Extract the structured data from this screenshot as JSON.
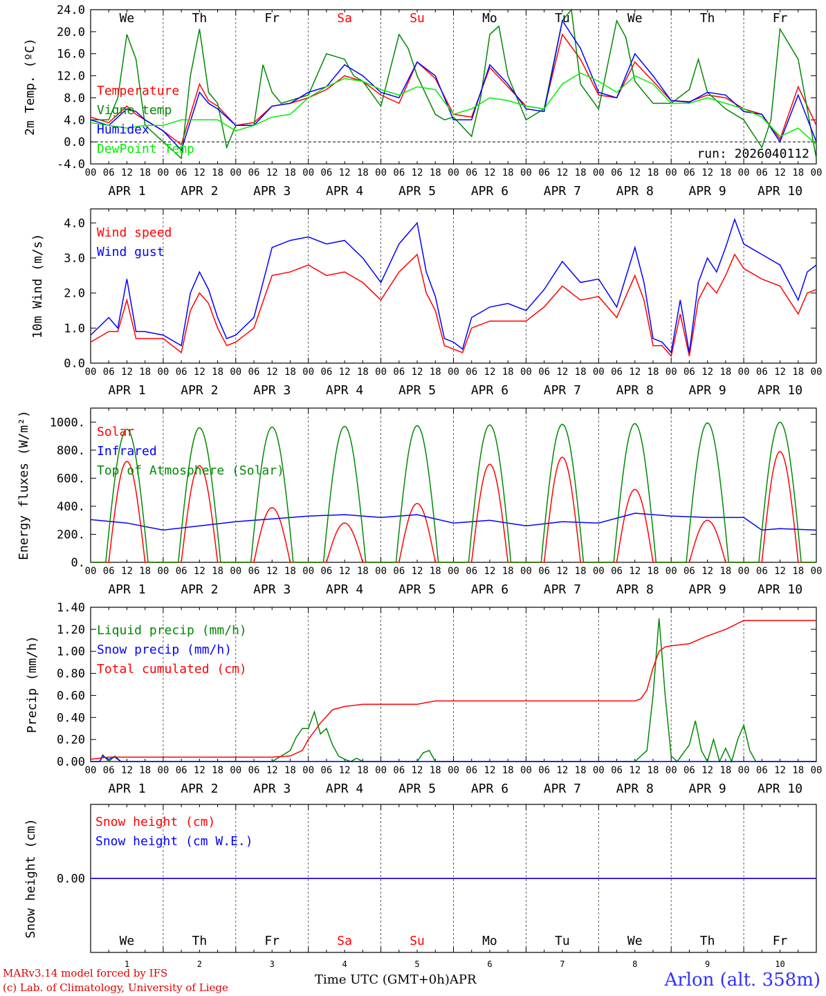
{
  "run_label": "run: 2026040112",
  "footer": {
    "credit_line1": "MARv3.14 model forced by IFS",
    "credit_line2": "(c) Lab. of Climatology, University of Liege",
    "x_axis_title": "Time UTC (GMT+0h)",
    "month_label": "APR",
    "station": "Arlon (alt. 358m)"
  },
  "colors": {
    "red": "#ff0000",
    "blue": "#0000ff",
    "green": "#008800",
    "lightgreen": "#00ee00",
    "weekend": "#ff0000",
    "axis": "#000000"
  },
  "days": [
    {
      "abbr": "We",
      "num": "1",
      "date": "APR  1",
      "weekend": false
    },
    {
      "abbr": "Th",
      "num": "2",
      "date": "APR  2",
      "weekend": false
    },
    {
      "abbr": "Fr",
      "num": "3",
      "date": "APR  3",
      "weekend": false
    },
    {
      "abbr": "Sa",
      "num": "4",
      "date": "APR  4",
      "weekend": true
    },
    {
      "abbr": "Su",
      "num": "5",
      "date": "APR  5",
      "weekend": true
    },
    {
      "abbr": "Mo",
      "num": "6",
      "date": "APR  6",
      "weekend": false
    },
    {
      "abbr": "Tu",
      "num": "7",
      "date": "APR  7",
      "weekend": false
    },
    {
      "abbr": "We",
      "num": "8",
      "date": "APR  8",
      "weekend": false
    },
    {
      "abbr": "Th",
      "num": "9",
      "date": "APR  9",
      "weekend": false
    },
    {
      "abbr": "Fr",
      "num": "10",
      "date": "APR 10",
      "weekend": false
    }
  ],
  "hour_labels": [
    "00",
    "06",
    "12",
    "18"
  ],
  "chart_data": [
    {
      "type": "line",
      "id": "temp",
      "ylabel": "2m Temp. (ºC)",
      "ylim": [
        -4,
        24
      ],
      "yticks": [
        "-4.0",
        "0.0",
        "4.0",
        "8.0",
        "12.0",
        "16.0",
        "20.0",
        "24.0"
      ],
      "ytick_values": [
        -4,
        0,
        4,
        8,
        12,
        16,
        20,
        24
      ],
      "zero_line": true,
      "x_unit": "hours since APR 1 00 UTC",
      "series": [
        {
          "name": "Temperature",
          "color": "#ff0000",
          "x": [
            0,
            6,
            12,
            15,
            18,
            24,
            30,
            36,
            39,
            42,
            48,
            54,
            60,
            66,
            72,
            78,
            84,
            90,
            96,
            102,
            108,
            114,
            120,
            126,
            132,
            138,
            144,
            150,
            156,
            162,
            168,
            174,
            180,
            186,
            192,
            198,
            204,
            210,
            216,
            222,
            228,
            234,
            240
          ],
          "values": [
            4.5,
            3.5,
            6.5,
            5,
            4,
            2,
            -0.5,
            10.5,
            7.5,
            6.5,
            3,
            3.5,
            6.5,
            7,
            8,
            9.5,
            12,
            11,
            8.5,
            7,
            14.5,
            11.5,
            5,
            4.5,
            13.5,
            10,
            6.5,
            6,
            19.5,
            15,
            8.5,
            8,
            14.5,
            11,
            7.5,
            7.3,
            8.5,
            8,
            6,
            5,
            0.5,
            10,
            3
          ]
        },
        {
          "name": "Vigne temp",
          "color": "#008800",
          "x": [
            0,
            6,
            9,
            12,
            15,
            18,
            24,
            30,
            33,
            36,
            39,
            42,
            45,
            48,
            54,
            57,
            60,
            63,
            66,
            72,
            78,
            84,
            87,
            90,
            96,
            102,
            105,
            108,
            114,
            117,
            120,
            126,
            129,
            132,
            135,
            138,
            144,
            150,
            153,
            156,
            159,
            162,
            168,
            174,
            177,
            180,
            186,
            192,
            198,
            201,
            204,
            210,
            216,
            222,
            225,
            228,
            234,
            240
          ],
          "values": [
            4,
            4,
            8,
            19.5,
            15,
            3,
            0,
            -3,
            12,
            20.5,
            9,
            7,
            -1,
            3,
            3,
            14,
            9,
            7,
            7.5,
            8.5,
            16,
            15,
            12,
            11,
            6.5,
            19.5,
            17,
            12,
            5,
            4,
            4.5,
            1,
            8,
            19.5,
            21,
            12,
            4,
            6,
            14,
            22,
            24,
            10.5,
            6,
            22,
            19,
            11,
            7,
            7,
            9.5,
            15,
            9,
            6,
            4,
            -1,
            4,
            20.5,
            15,
            -3
          ]
        },
        {
          "name": "Humidex",
          "color": "#0000ff",
          "x": [
            0,
            6,
            12,
            15,
            18,
            24,
            30,
            36,
            39,
            42,
            48,
            54,
            60,
            66,
            72,
            78,
            84,
            90,
            96,
            102,
            108,
            114,
            120,
            126,
            132,
            138,
            144,
            150,
            156,
            162,
            168,
            174,
            180,
            186,
            192,
            198,
            204,
            210,
            216,
            222,
            228,
            234,
            240
          ],
          "values": [
            4,
            3,
            6,
            5.5,
            4,
            2,
            -1.5,
            9,
            7,
            6,
            3,
            3,
            6.5,
            7,
            9,
            10,
            14,
            12,
            9,
            8,
            14.5,
            12,
            4,
            4,
            14,
            10.5,
            6,
            5.5,
            22,
            17,
            9,
            8,
            16,
            12,
            7.5,
            7.2,
            9,
            8.5,
            5.5,
            5,
            0,
            8.5,
            0
          ]
        },
        {
          "name": "DewPoint Temp",
          "color": "#00ee00",
          "x": [
            0,
            6,
            12,
            18,
            24,
            30,
            36,
            42,
            48,
            54,
            60,
            66,
            72,
            78,
            84,
            90,
            96,
            102,
            108,
            114,
            120,
            126,
            132,
            138,
            144,
            150,
            156,
            162,
            168,
            174,
            180,
            186,
            192,
            198,
            204,
            210,
            216,
            222,
            228,
            234,
            240
          ],
          "values": [
            3.5,
            3,
            2.5,
            3,
            3,
            4,
            4,
            4,
            2,
            3,
            4.5,
            5,
            8,
            10,
            11.5,
            11,
            9.5,
            8.5,
            10,
            9.5,
            5,
            6,
            8,
            7.5,
            6.5,
            6,
            10.5,
            12.5,
            11,
            9,
            12,
            10.5,
            7,
            7,
            8,
            7,
            6,
            4.5,
            1,
            2.5,
            -0.5
          ]
        }
      ]
    },
    {
      "type": "line",
      "id": "wind",
      "ylabel": "10m Wind (m/s)",
      "ylim": [
        0,
        4.4
      ],
      "yticks": [
        "0.0",
        "1.0",
        "2.0",
        "3.0",
        "4.0"
      ],
      "ytick_values": [
        0,
        1,
        2,
        3,
        4
      ],
      "x_unit": "hours since APR 1 00 UTC",
      "series": [
        {
          "name": "Wind speed",
          "color": "#ff0000",
          "x": [
            0,
            6,
            9,
            12,
            15,
            18,
            24,
            30,
            33,
            36,
            39,
            42,
            45,
            48,
            54,
            60,
            66,
            72,
            78,
            84,
            90,
            96,
            102,
            108,
            111,
            114,
            117,
            120,
            123,
            126,
            132,
            138,
            144,
            150,
            156,
            162,
            168,
            174,
            180,
            183,
            186,
            189,
            192,
            195,
            198,
            201,
            204,
            207,
            210,
            213,
            216,
            222,
            228,
            234,
            237,
            240
          ],
          "values": [
            0.6,
            0.9,
            0.9,
            1.8,
            0.7,
            0.7,
            0.7,
            0.3,
            1.5,
            2.0,
            1.7,
            1.0,
            0.5,
            0.6,
            1.0,
            2.5,
            2.6,
            2.8,
            2.5,
            2.6,
            2.3,
            1.8,
            2.6,
            3.1,
            2.0,
            1.5,
            0.5,
            0.4,
            0.3,
            1.0,
            1.2,
            1.2,
            1.2,
            1.6,
            2.2,
            1.8,
            1.9,
            1.3,
            2.5,
            1.8,
            0.5,
            0.5,
            0.2,
            1.4,
            0.2,
            1.8,
            2.3,
            2.0,
            2.5,
            3.1,
            2.7,
            2.4,
            2.2,
            1.4,
            2.0,
            2.1
          ]
        },
        {
          "name": "Wind gust",
          "color": "#0000ff",
          "x": [
            0,
            6,
            9,
            12,
            15,
            18,
            24,
            30,
            33,
            36,
            39,
            42,
            45,
            48,
            54,
            60,
            66,
            72,
            78,
            84,
            90,
            96,
            102,
            108,
            111,
            114,
            117,
            120,
            123,
            126,
            132,
            138,
            144,
            150,
            156,
            162,
            168,
            174,
            180,
            183,
            186,
            189,
            192,
            195,
            198,
            201,
            204,
            207,
            210,
            213,
            216,
            222,
            228,
            234,
            237,
            240
          ],
          "values": [
            0.8,
            1.3,
            1.0,
            2.4,
            0.9,
            0.9,
            0.8,
            0.5,
            2.0,
            2.6,
            2.1,
            1.3,
            0.7,
            0.8,
            1.3,
            3.3,
            3.5,
            3.6,
            3.4,
            3.5,
            3.0,
            2.3,
            3.4,
            4.0,
            2.6,
            1.9,
            0.7,
            0.6,
            0.4,
            1.3,
            1.6,
            1.7,
            1.5,
            2.1,
            2.9,
            2.3,
            2.4,
            1.6,
            3.3,
            2.3,
            0.7,
            0.6,
            0.3,
            1.8,
            0.3,
            2.3,
            3.0,
            2.6,
            3.3,
            4.1,
            3.4,
            3.1,
            2.8,
            1.8,
            2.6,
            2.8
          ]
        }
      ]
    },
    {
      "type": "line",
      "id": "energy",
      "ylabel": "Energy fluxes (W/m²)",
      "ylim": [
        0,
        1100
      ],
      "yticks": [
        "0.",
        "200.",
        "400.",
        "600.",
        "800.",
        "1000."
      ],
      "ytick_values": [
        0,
        200,
        400,
        600,
        800,
        1000
      ],
      "x_unit": "hours since APR 1 00 UTC",
      "series": [
        {
          "name": "Solar",
          "color": "#ff0000",
          "daily_peak": [
            720,
            690,
            390,
            280,
            420,
            700,
            750,
            520,
            300,
            790
          ]
        },
        {
          "name": "Infrared",
          "color": "#0000ff",
          "x": [
            0,
            12,
            24,
            48,
            60,
            72,
            84,
            96,
            108,
            120,
            132,
            144,
            156,
            168,
            180,
            192,
            204,
            216,
            222,
            228,
            240
          ],
          "values": [
            305,
            280,
            230,
            290,
            310,
            330,
            340,
            320,
            340,
            280,
            300,
            260,
            290,
            280,
            350,
            330,
            320,
            320,
            230,
            240,
            230
          ]
        },
        {
          "name": "Top of Atmosphere (Solar)",
          "color": "#008800",
          "daily_peak": [
            950,
            960,
            965,
            970,
            975,
            980,
            985,
            990,
            995,
            1000
          ]
        }
      ]
    },
    {
      "type": "line",
      "id": "precip",
      "ylabel": "Precip (mm/h)",
      "ylim": [
        0,
        1.4
      ],
      "yticks": [
        "0.00",
        "0.20",
        "0.40",
        "0.60",
        "0.80",
        "1.00",
        "1.20",
        "1.40"
      ],
      "ytick_values": [
        0,
        0.2,
        0.4,
        0.6,
        0.8,
        1.0,
        1.2,
        1.4
      ],
      "x_unit": "hours since APR 1 00 UTC",
      "series": [
        {
          "name": "Liquid precip (mm/h)",
          "color": "#008800",
          "x": [
            0,
            3,
            4,
            6,
            8,
            10,
            12,
            60,
            66,
            68,
            70,
            72,
            74,
            76,
            78,
            80,
            82,
            84,
            86,
            88,
            90,
            92,
            94,
            96,
            98,
            108,
            110,
            112,
            114,
            126,
            180,
            182,
            184,
            186,
            188,
            190,
            192,
            194,
            198,
            200,
            202,
            204,
            206,
            208,
            210,
            212,
            214,
            216,
            218,
            220,
            222,
            240
          ],
          "values": [
            0,
            0,
            0.06,
            0,
            0.05,
            0,
            0,
            0,
            0.1,
            0.22,
            0.3,
            0.3,
            0.45,
            0.25,
            0.3,
            0.15,
            0.05,
            0.02,
            0,
            0.03,
            0,
            0,
            0,
            0,
            0,
            0,
            0.08,
            0.1,
            0,
            0,
            0,
            0.05,
            0.1,
            0.6,
            1.3,
            0.6,
            0.05,
            0,
            0.15,
            0.37,
            0.1,
            0,
            0.2,
            0,
            0.12,
            0,
            0.2,
            0.33,
            0.1,
            0,
            0,
            0
          ]
        },
        {
          "name": "Snow precip (mm/h)",
          "color": "#0000ff",
          "x": [
            0,
            3,
            4,
            6,
            8,
            10,
            12,
            240
          ],
          "values": [
            0,
            0,
            0.05,
            0.02,
            0.04,
            0,
            0,
            0
          ]
        },
        {
          "name": "Total cumulated (cm)",
          "color": "#ff0000",
          "x": [
            0,
            6,
            12,
            60,
            66,
            70,
            72,
            76,
            80,
            84,
            90,
            96,
            108,
            114,
            120,
            180,
            182,
            184,
            186,
            188,
            190,
            192,
            198,
            204,
            210,
            216,
            240
          ],
          "values": [
            0.02,
            0.04,
            0.04,
            0.04,
            0.05,
            0.1,
            0.2,
            0.35,
            0.47,
            0.5,
            0.52,
            0.52,
            0.52,
            0.55,
            0.55,
            0.55,
            0.57,
            0.65,
            0.85,
            1.0,
            1.04,
            1.05,
            1.07,
            1.14,
            1.2,
            1.28,
            1.28
          ]
        }
      ]
    },
    {
      "type": "line",
      "id": "snow",
      "ylabel": "Snow height (cm)",
      "yticks": [
        "0.00"
      ],
      "x_unit": "hours since APR 1 00 UTC",
      "series": [
        {
          "name": "Snow height (cm)",
          "color": "#ff0000",
          "x": [
            0,
            240
          ],
          "values": [
            0,
            0
          ]
        },
        {
          "name": "Snow height (cm W.E.)",
          "color": "#0000ff",
          "x": [
            0,
            240
          ],
          "values": [
            0,
            0
          ]
        }
      ]
    }
  ]
}
